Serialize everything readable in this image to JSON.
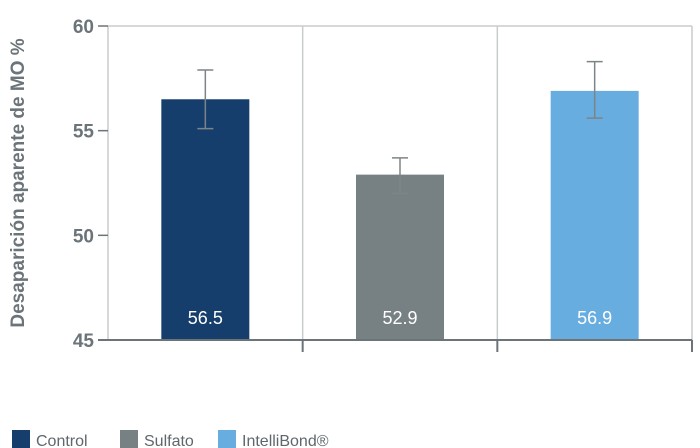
{
  "chart_data": {
    "type": "bar",
    "title": "",
    "xlabel": "",
    "ylabel": "Desaparición aparente de MO %",
    "ylim": [
      45,
      60
    ],
    "yticks": [
      45,
      50,
      55,
      60
    ],
    "grid": "vertical separators between categories",
    "legend_placement": "bottom-left",
    "categories": [
      "Control",
      "Sulfato",
      "IntelliBond®"
    ],
    "series": [
      {
        "values": [
          56.5,
          52.9,
          56.9
        ],
        "value_labels": [
          "56.5",
          "52.9",
          "56.9"
        ],
        "error_low": [
          55.1,
          52.0,
          55.6
        ],
        "error_high": [
          57.9,
          53.7,
          58.3
        ],
        "colors": [
          "#163e6c",
          "#778184",
          "#67ade0"
        ]
      }
    ],
    "legend": [
      {
        "label": "Control",
        "color": "#163e6c"
      },
      {
        "label": "Sulfato",
        "color": "#778184"
      },
      {
        "label": "IntelliBond®",
        "color": "#67ade0"
      }
    ]
  }
}
